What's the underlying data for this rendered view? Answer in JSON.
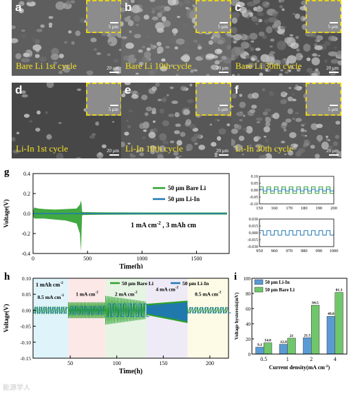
{
  "sem_panels": [
    {
      "letter": "a",
      "title": "Bare Li 1st cycle",
      "scale": "20 μm",
      "inset_scale": "5 μm"
    },
    {
      "letter": "b",
      "title": "Bare Li 10th cycle",
      "scale": "20 μm",
      "inset_scale": "5 μm"
    },
    {
      "letter": "c",
      "title": "Bare Li 30th cycle",
      "scale": "20 μm",
      "inset_scale": "5 μm"
    },
    {
      "letter": "d",
      "title": "Li-In 1st cycle",
      "scale": "20 μm",
      "inset_scale": "5 μm"
    },
    {
      "letter": "e",
      "title": "Li-In 10th cycle",
      "scale": "20 μm",
      "inset_scale": "5 μm"
    },
    {
      "letter": "f",
      "title": "Li-In 30th cycle",
      "scale": "20 μm",
      "inset_scale": "5 μm"
    }
  ],
  "colors": {
    "bare_li": "#2ca02c",
    "li_in": "#1f77b4",
    "bar_li_in": "#5b9bd5",
    "bar_bare_li": "#70c66a",
    "highlight": "#e7d21a"
  },
  "watermark": "能源学人",
  "chart_data": [
    {
      "panel": "g",
      "type": "line",
      "title": "",
      "xlabel": "Time(h)",
      "ylabel": "Voltage(V)",
      "xlim": [
        0,
        1800
      ],
      "ylim": [
        -0.4,
        0.4
      ],
      "xticks": [
        0,
        500,
        1000,
        1500
      ],
      "yticks": [
        -0.4,
        -0.2,
        0.0,
        0.2,
        0.4
      ],
      "annotation": "1 mA cm-2 , 3 mAh cm-2",
      "legend": [
        "50 μm Bare Li",
        "50 μm Li-In"
      ],
      "legend_position": "top-right",
      "series": [
        {
          "name": "50 μm Bare Li",
          "x": [
            0,
            10,
            50,
            100,
            200,
            300,
            400,
            430,
            440,
            445,
            450,
            460,
            600,
            1000,
            1500,
            1780
          ],
          "y_upper": [
            0.02,
            0.06,
            0.05,
            0.045,
            0.04,
            0.045,
            0.05,
            0.09,
            0.13,
            0.1,
            0.02,
            0.015,
            0.012,
            0.01,
            0.01,
            0.01
          ],
          "y_lower": [
            -0.02,
            -0.05,
            -0.05,
            -0.05,
            -0.06,
            -0.07,
            -0.1,
            -0.2,
            -0.38,
            -0.2,
            -0.02,
            -0.015,
            -0.012,
            -0.01,
            -0.01,
            -0.01
          ]
        },
        {
          "name": "50 μm Li-In",
          "x": [
            0,
            1780
          ],
          "y_upper": [
            0.005,
            0.005
          ],
          "y_lower": [
            -0.005,
            -0.005
          ]
        }
      ]
    },
    {
      "panel": "g-inset-top",
      "type": "line",
      "xlim": [
        150,
        200
      ],
      "ylim": [
        -0.1,
        0.1
      ],
      "xticks": [
        150,
        160,
        170,
        180,
        190,
        200
      ],
      "yticks": [
        -0.1,
        -0.05,
        0.0,
        0.05,
        0.1
      ],
      "series": [
        {
          "name": "50 μm Bare Li",
          "amplitude": 0.04,
          "period": 5
        }
      ]
    },
    {
      "panel": "g-inset-bottom",
      "type": "line",
      "xlim": [
        950,
        1000
      ],
      "ylim": [
        -0.03,
        0.03
      ],
      "xticks": [
        950,
        960,
        970,
        980,
        990,
        1000
      ],
      "yticks": [
        -0.03,
        -0.015,
        0.0,
        0.015,
        0.03
      ],
      "series": [
        {
          "name": "50 μm Li-In",
          "amplitude": 0.008,
          "period": 5
        }
      ]
    },
    {
      "panel": "h",
      "type": "line",
      "xlabel": "Time(h)",
      "ylabel": "Voltage(V)",
      "xlim": [
        10,
        220
      ],
      "ylim": [
        -0.15,
        0.1
      ],
      "xticks": [
        50,
        100,
        150,
        200
      ],
      "yticks": [
        -0.15,
        -0.1,
        -0.05,
        0.0,
        0.05,
        0.1
      ],
      "legend": [
        "50 μm Bare Li",
        "50 μm Li-In"
      ],
      "legend_position": "top",
      "segments": [
        {
          "label": "0.5 mA cm-2",
          "x_start": 10,
          "x_end": 48,
          "bare_amp": 0.012,
          "liin_amp": 0.008
        },
        {
          "label": "1 mA cm-2",
          "x_start": 48,
          "x_end": 88,
          "bare_amp": 0.025,
          "liin_amp": 0.012
        },
        {
          "label": "2 mA cm-2",
          "x_start": 88,
          "x_end": 132,
          "bare_amp": 0.045,
          "liin_amp": 0.02
        },
        {
          "label": "4 mA cm-2",
          "x_start": 132,
          "x_end": 176,
          "bare_amp": 0.04,
          "liin_amp": 0.04
        },
        {
          "label": "0.5 mA cm-2",
          "x_start": 176,
          "x_end": 220,
          "bare_amp": 0.01,
          "liin_amp": 0.008
        }
      ],
      "top_left_label": "1 mAh cm-2"
    },
    {
      "panel": "i",
      "type": "bar",
      "xlabel": "Current density(mA cm-2)",
      "ylabel": "Voltage hysteresis(mV)",
      "ylim": [
        0,
        100
      ],
      "yticks": [
        0,
        20,
        40,
        60,
        80,
        100
      ],
      "categories": [
        "0.5",
        "1",
        "2",
        "4"
      ],
      "legend_position": "top-left",
      "series": [
        {
          "name": "50 μm Li-In",
          "values": [
            9.1,
            12.9,
            21.5,
            49.8
          ]
        },
        {
          "name": "50 μm Bare Li",
          "values": [
            14.8,
            21,
            64.5,
            81.3
          ]
        }
      ]
    }
  ]
}
